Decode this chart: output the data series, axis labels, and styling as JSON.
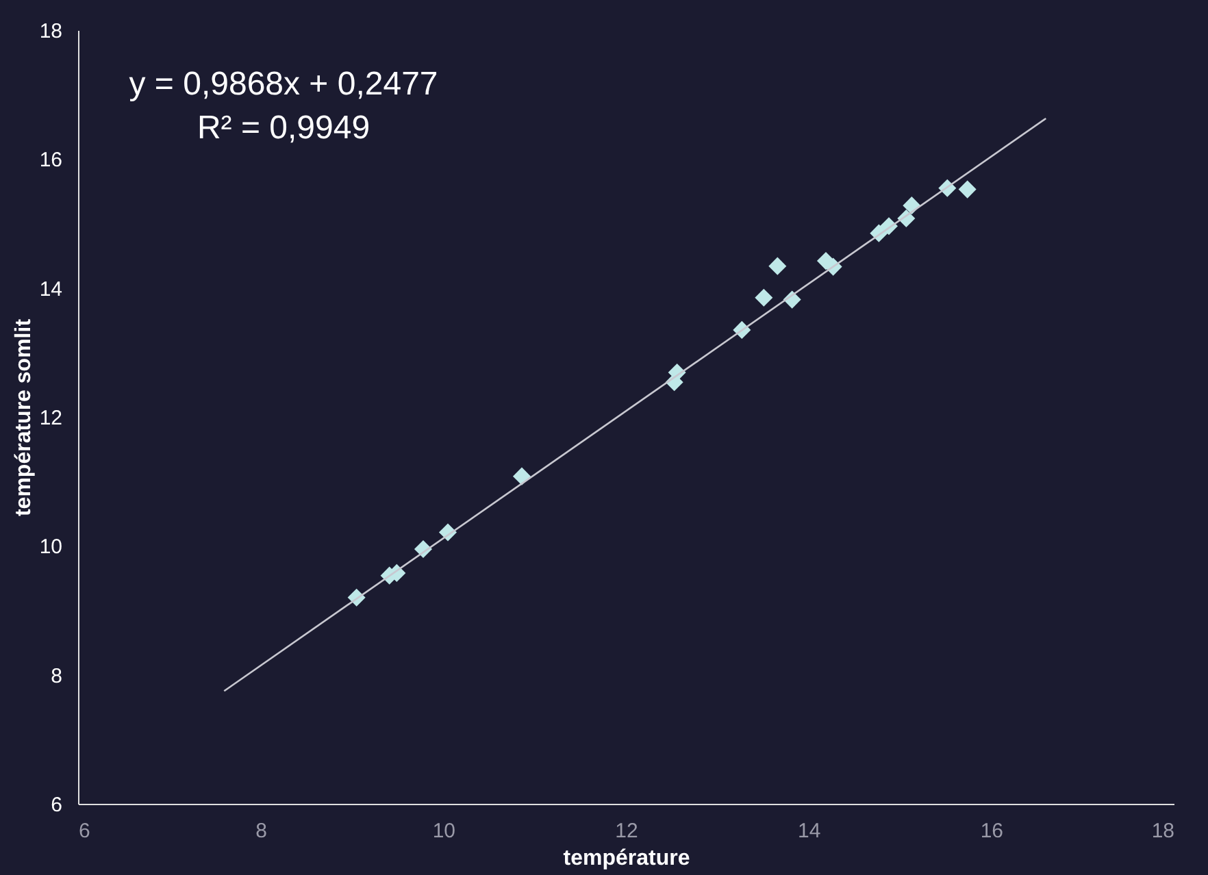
{
  "chart_data": {
    "type": "scatter",
    "xlabel": "température",
    "ylabel": "température somlit",
    "annotations": [
      "y = 0,9868x + 0,2477",
      "R² = 0,9949"
    ],
    "xlim": [
      6,
      18
    ],
    "ylim": [
      6,
      18
    ],
    "xticks": [
      6,
      8,
      10,
      12,
      14,
      16,
      18
    ],
    "yticks": [
      6,
      8,
      10,
      12,
      14,
      16,
      18
    ],
    "series": [
      {
        "color": "#bfe8e8",
        "marker": "diamond",
        "x": [
          9.05,
          9.41,
          9.49,
          9.78,
          10.05,
          10.86,
          12.53,
          12.56,
          13.27,
          13.51,
          13.66,
          13.82,
          14.19,
          14.27,
          14.77,
          14.88,
          15.07,
          15.13,
          15.52,
          15.74
        ],
        "values": [
          9.2,
          9.54,
          9.58,
          9.95,
          10.21,
          11.08,
          12.54,
          12.69,
          13.35,
          13.85,
          14.34,
          13.82,
          14.42,
          14.33,
          14.85,
          14.96,
          15.08,
          15.28,
          15.55,
          15.53
        ]
      },
      {
        "type": "line",
        "color": "#c8c8d0",
        "line_style": "solid",
        "x": [
          7.6,
          16.6
        ],
        "values": [
          7.75,
          16.63
        ]
      }
    ]
  }
}
